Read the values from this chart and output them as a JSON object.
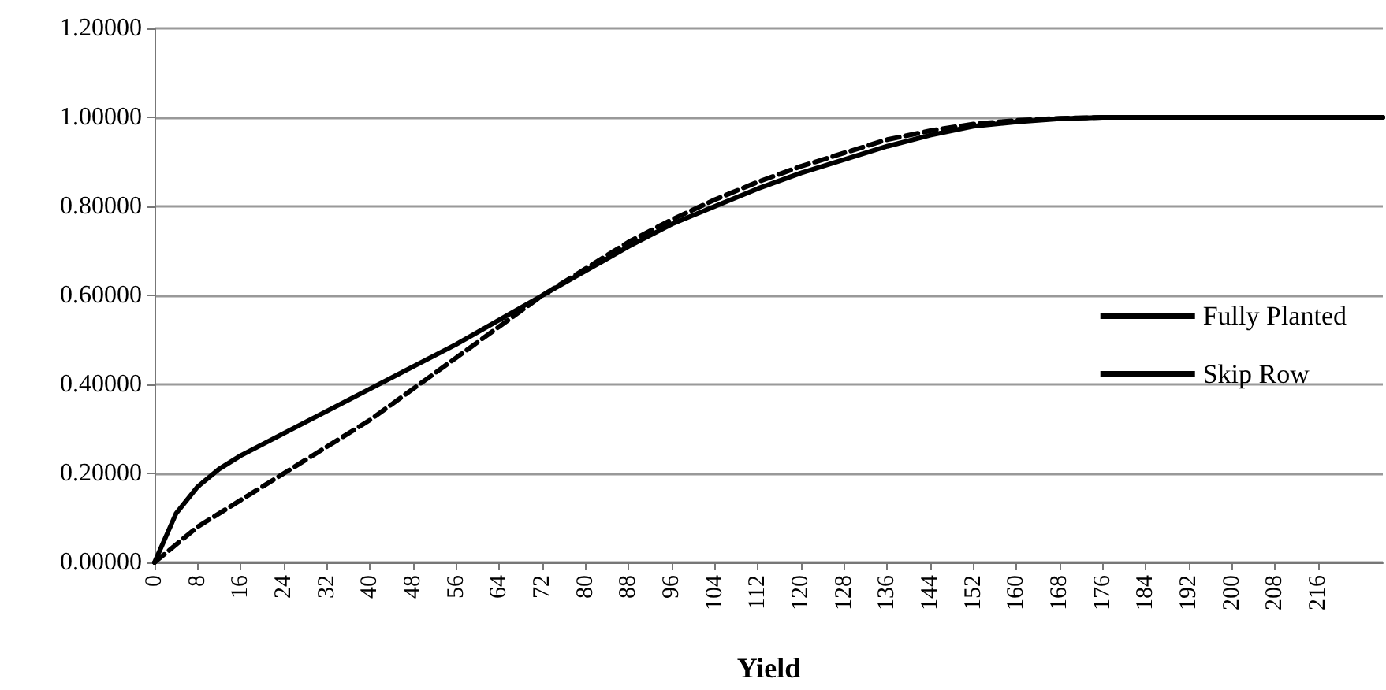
{
  "chart_data": {
    "type": "line",
    "xlabel": "Yield",
    "grid": "y",
    "legend": "right",
    "marker": "none",
    "xlim": [
      0,
      228
    ],
    "xticks": [
      0,
      8,
      16,
      24,
      32,
      40,
      48,
      56,
      64,
      72,
      80,
      88,
      96,
      104,
      112,
      120,
      128,
      136,
      144,
      152,
      160,
      168,
      176,
      184,
      192,
      200,
      208,
      216
    ],
    "ylim": [
      0,
      1.2
    ],
    "yticks": [
      {
        "value": 0,
        "label": "0.00000"
      },
      {
        "value": 0.2,
        "label": "0.20000"
      },
      {
        "value": 0.4,
        "label": "0.40000"
      },
      {
        "value": 0.6,
        "label": "0.60000"
      },
      {
        "value": 0.8,
        "label": "0.80000"
      },
      {
        "value": 1,
        "label": "1.00000"
      },
      {
        "value": 1.2,
        "label": "1.20000"
      }
    ],
    "series": [
      {
        "name": "Fully Planted",
        "color": "#000000",
        "line_style": "solid",
        "x": [
          0,
          4,
          8,
          12,
          16,
          24,
          32,
          40,
          48,
          56,
          64,
          72,
          80,
          88,
          96,
          104,
          112,
          120,
          128,
          136,
          144,
          152,
          160,
          168,
          176,
          228
        ],
        "values": [
          0,
          0.11,
          0.17,
          0.21,
          0.24,
          0.29,
          0.34,
          0.39,
          0.44,
          0.49,
          0.545,
          0.6,
          0.655,
          0.71,
          0.76,
          0.8,
          0.84,
          0.875,
          0.905,
          0.935,
          0.96,
          0.98,
          0.99,
          0.997,
          1,
          1
        ]
      },
      {
        "name": "Skip Row",
        "color": "#000000",
        "line_style": "dashed",
        "x": [
          0,
          8,
          16,
          24,
          32,
          40,
          48,
          56,
          64,
          72,
          80,
          88,
          96,
          104,
          112,
          120,
          128,
          136,
          144,
          152,
          160,
          168,
          176,
          228
        ],
        "values": [
          0,
          0.08,
          0.14,
          0.2,
          0.26,
          0.32,
          0.39,
          0.46,
          0.53,
          0.6,
          0.66,
          0.72,
          0.77,
          0.815,
          0.855,
          0.89,
          0.92,
          0.95,
          0.97,
          0.985,
          0.993,
          0.998,
          1,
          1
        ]
      }
    ]
  }
}
